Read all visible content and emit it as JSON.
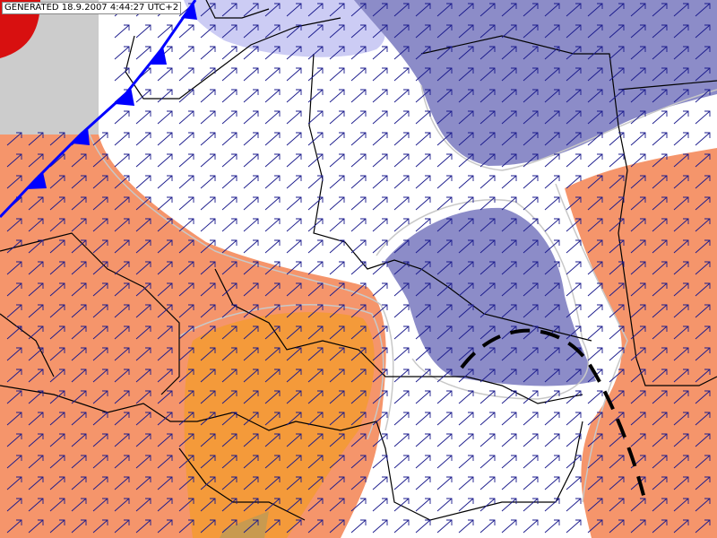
{
  "header": {
    "label": "GENERATED 18.9.2007 4:44:27 UTC+2"
  }
}
